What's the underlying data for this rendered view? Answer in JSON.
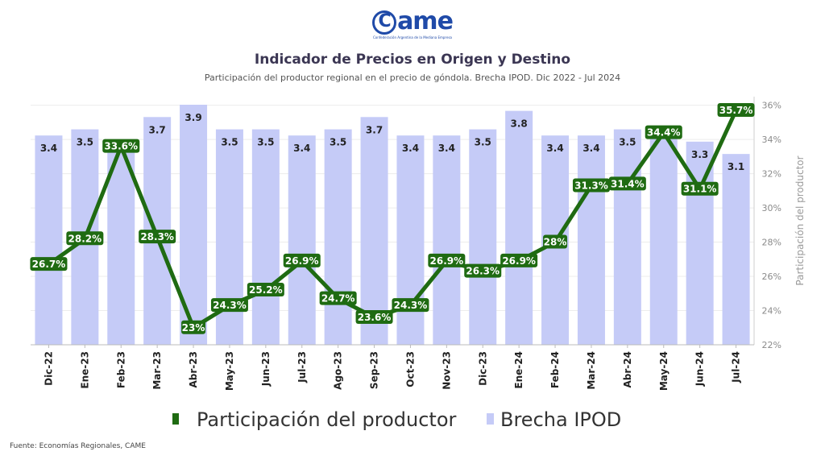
{
  "logo": {
    "name": "came",
    "subtitle": "Confederación Argentina de la Mediana Empresa"
  },
  "chart_data": {
    "type": "bar+line",
    "title": "Indicador de Precios en Origen y Destino",
    "subtitle": "Participación del productor regional en el precio de góndola. Brecha IPOD. Dic 2022 - Jul 2024",
    "categories": [
      "Dic-22",
      "Ene-23",
      "Feb-23",
      "Mar-23",
      "Abr-23",
      "May-23",
      "Jun-23",
      "Jul-23",
      "Ago-23",
      "Sep-23",
      "Oct-23",
      "Nov-23",
      "Dic-23",
      "Ene-24",
      "Feb-24",
      "Mar-24",
      "Abr-24",
      "May-24",
      "Jun-24",
      "Jul-24"
    ],
    "series": [
      {
        "name": "Brecha IPOD",
        "kind": "bar",
        "color": "#c5cbf7",
        "values": [
          3.4,
          3.5,
          3.3,
          3.7,
          3.9,
          3.5,
          3.5,
          3.4,
          3.5,
          3.7,
          3.4,
          3.4,
          3.5,
          3.8,
          3.4,
          3.4,
          3.5,
          3.4,
          3.3,
          3.1
        ],
        "labels": [
          "3.4",
          "3.5",
          "",
          "3.7",
          "3.9",
          "3.5",
          "3.5",
          "3.4",
          "3.5",
          "3.7",
          "3.4",
          "3.4",
          "3.5",
          "3.8",
          "3.4",
          "3.4",
          "3.5",
          "",
          "3.3",
          "3.1"
        ]
      },
      {
        "name": "Participación del productor",
        "kind": "line",
        "color": "#1f6b12",
        "values": [
          26.7,
          28.2,
          33.6,
          28.3,
          23.0,
          24.3,
          25.2,
          26.9,
          24.7,
          23.6,
          24.3,
          26.9,
          26.3,
          26.9,
          28.0,
          31.3,
          31.4,
          34.4,
          31.1,
          35.7
        ],
        "labels": [
          "26.7%",
          "28.2%",
          "33.6%",
          "28.3%",
          "23%",
          "24.3%",
          "25.2%",
          "26.9%",
          "24.7%",
          "23.6%",
          "24.3%",
          "26.9%",
          "26.3%",
          "26.9%",
          "28%",
          "31.3%",
          "31.4%",
          "34.4%",
          "31.1%",
          "35.7%"
        ]
      }
    ],
    "y_right": {
      "label": "Participación del productor",
      "ylim": [
        22,
        36.5
      ],
      "ticks": [
        "22%",
        "24%",
        "26%",
        "28%",
        "30%",
        "32%",
        "34%",
        "36%"
      ]
    },
    "bar_scale_max": 3.9,
    "legend": {
      "position": "bottom"
    },
    "grid": true,
    "source": "Fuente: Economías Regionales, CAME"
  }
}
